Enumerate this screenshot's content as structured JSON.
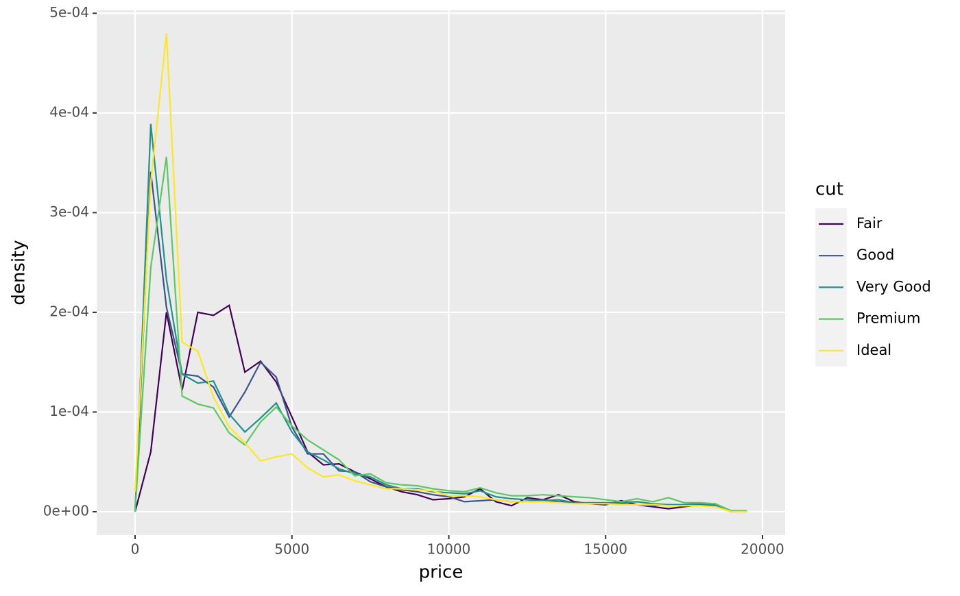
{
  "chart_data": {
    "type": "line",
    "x_label": "price",
    "y_label": "density",
    "legend_title": "cut",
    "x": [
      0,
      500,
      1000,
      1500,
      2000,
      2500,
      3000,
      3500,
      4000,
      4500,
      5000,
      5500,
      6000,
      6500,
      7000,
      7500,
      8000,
      8500,
      9000,
      9500,
      10000,
      10500,
      11000,
      11500,
      12000,
      12500,
      13000,
      13500,
      14000,
      14500,
      15000,
      15500,
      16000,
      16500,
      17000,
      17500,
      18000,
      18500,
      19000,
      19500
    ],
    "series": [
      {
        "name": "Fair",
        "color": "#440154",
        "values": [
          0,
          6e-05,
          0.0002,
          0.000122,
          0.0002,
          0.000197,
          0.000207,
          0.00014,
          0.000151,
          0.00013,
          9.5e-05,
          6e-05,
          4.7e-05,
          4.8e-05,
          4e-05,
          3.3e-05,
          2.5e-05,
          2e-05,
          1.7e-05,
          1.2e-05,
          1.3e-05,
          1.5e-05,
          2.3e-05,
          1e-05,
          6e-06,
          1.4e-05,
          1.2e-05,
          1.7e-05,
          1e-05,
          8e-06,
          7e-06,
          1.1e-05,
          7e-06,
          5e-06,
          3e-06,
          5e-06,
          7e-06,
          6e-06,
          0,
          0
        ]
      },
      {
        "name": "Good",
        "color": "#3B528B",
        "values": [
          0,
          0.000341,
          0.000205,
          0.000138,
          0.000136,
          0.000125,
          9.5e-05,
          0.00012,
          0.00015,
          0.000135,
          8.5e-05,
          5.8e-05,
          5.8e-05,
          4.1e-05,
          4e-05,
          3e-05,
          2.5e-05,
          2.2e-05,
          2e-05,
          1.7e-05,
          1.5e-05,
          1e-05,
          1.1e-05,
          1.2e-05,
          1e-05,
          1e-05,
          1.2e-05,
          1e-05,
          9e-06,
          8e-06,
          8e-06,
          8e-06,
          7e-06,
          6e-06,
          7e-06,
          6e-06,
          7e-06,
          6e-06,
          0,
          0
        ]
      },
      {
        "name": "Very Good",
        "color": "#21908C",
        "values": [
          0,
          0.000389,
          0.000233,
          0.000138,
          0.000129,
          0.000131,
          9.8e-05,
          8e-05,
          9.4e-05,
          0.000109,
          8e-05,
          6e-05,
          5.2e-05,
          4.3e-05,
          3.8e-05,
          3.5e-05,
          2.7e-05,
          2.3e-05,
          2.3e-05,
          2e-05,
          1.9e-05,
          1.8e-05,
          2.1e-05,
          1.5e-05,
          1.3e-05,
          1.2e-05,
          1.1e-05,
          1.2e-05,
          9e-06,
          9e-06,
          9e-06,
          9e-06,
          1e-05,
          8e-06,
          7e-06,
          7e-06,
          8e-06,
          7e-06,
          1e-06,
          0
        ]
      },
      {
        "name": "Premium",
        "color": "#5DC863",
        "values": [
          0,
          0.000245,
          0.000356,
          0.000116,
          0.000108,
          0.000104,
          7.9e-05,
          6.7e-05,
          9e-05,
          0.000105,
          8.6e-05,
          7.2e-05,
          6.2e-05,
          5.2e-05,
          3.6e-05,
          3.8e-05,
          2.9e-05,
          2.7e-05,
          2.6e-05,
          2.3e-05,
          2.1e-05,
          2e-05,
          2.4e-05,
          1.9e-05,
          1.6e-05,
          1.6e-05,
          1.7e-05,
          1.6e-05,
          1.5e-05,
          1.4e-05,
          1.2e-05,
          1e-05,
          1.3e-05,
          1e-05,
          1.4e-05,
          9e-06,
          9e-06,
          8e-06,
          1e-06,
          1e-06
        ]
      },
      {
        "name": "Ideal",
        "color": "#FDE725",
        "values": [
          2e-05,
          0.00033,
          0.00048,
          0.00017,
          0.000161,
          0.000115,
          8.5e-05,
          6.9e-05,
          5.1e-05,
          5.5e-05,
          5.8e-05,
          4.4e-05,
          3.5e-05,
          3.7e-05,
          3.1e-05,
          2.7e-05,
          2.3e-05,
          2.3e-05,
          2.2e-05,
          2.1e-05,
          1.6e-05,
          1.6e-05,
          1.5e-05,
          1.2e-05,
          1e-05,
          1e-05,
          1e-05,
          9e-06,
          8e-06,
          8e-06,
          8e-06,
          7e-06,
          7e-06,
          7e-06,
          6e-06,
          6e-06,
          6e-06,
          5e-06,
          0,
          0
        ]
      }
    ],
    "xlim": [
      -1224,
      20722
    ],
    "xticks": [
      0,
      5000,
      10000,
      15000,
      20000
    ],
    "ylim": [
      -2.34e-05,
      0.000503
    ],
    "yticks": [
      {
        "value": 0,
        "label": "0e+00"
      },
      {
        "value": 0.0001,
        "label": "1e-04"
      },
      {
        "value": 0.0002,
        "label": "2e-04"
      },
      {
        "value": 0.0003,
        "label": "3e-04"
      },
      {
        "value": 0.0004,
        "label": "4e-04"
      },
      {
        "value": 0.0005,
        "label": "5e-04"
      }
    ],
    "grid": true
  }
}
